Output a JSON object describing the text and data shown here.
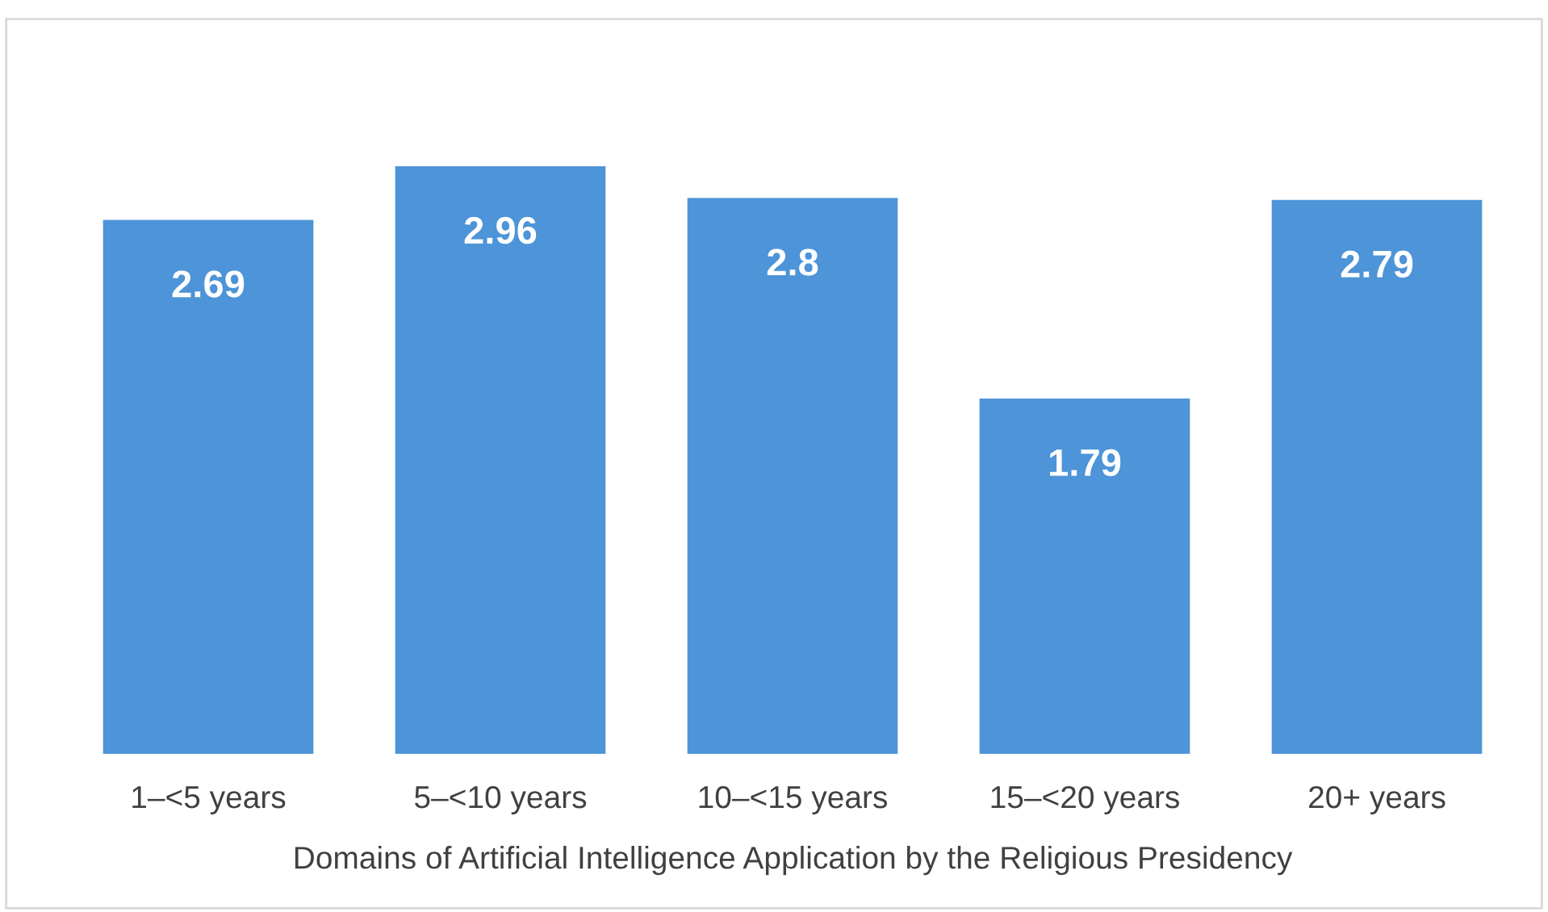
{
  "chart_data": {
    "type": "bar",
    "xlabel": "Domains of Artificial Intelligence Application by the Religious Presidency",
    "categories": [
      "1–<5 years",
      "5–<10 years",
      "10–<15 years",
      "15–<20 years",
      "20+ years"
    ],
    "values": [
      2.69,
      2.96,
      2.8,
      1.79,
      2.79
    ],
    "color": "#4d94d8",
    "ylim": [
      0,
      3.7
    ],
    "data_labels": true,
    "grid": false,
    "legend": false
  }
}
